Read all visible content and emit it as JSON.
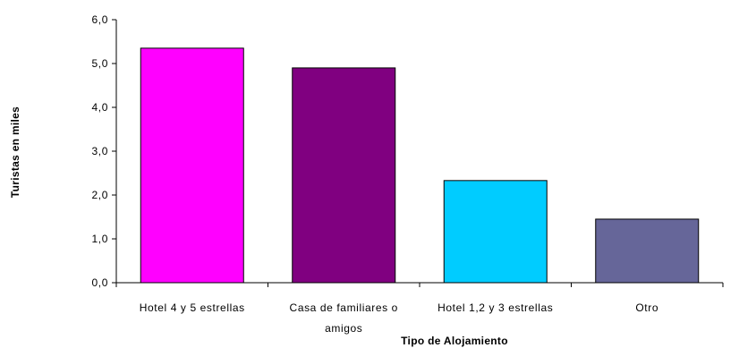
{
  "chart_data": {
    "type": "bar",
    "categories": [
      [
        "Hotel 4 y 5 estrellas"
      ],
      [
        "Casa de familiares o",
        "amigos"
      ],
      [
        "Hotel 1,2 y 3 estrellas"
      ],
      [
        "Otro"
      ]
    ],
    "values": [
      5.35,
      4.9,
      2.33,
      1.45
    ],
    "colors": [
      "#ff00ff",
      "#800080",
      "#00ccff",
      "#666699"
    ],
    "xlabel": "Tipo de Alojamiento",
    "ylabel": "Turistas en miles",
    "ylim": [
      0,
      6
    ],
    "yticks": [
      "0,0",
      "1,0",
      "2,0",
      "3,0",
      "4,0",
      "5,0",
      "6,0"
    ],
    "grid": false,
    "legend": "none"
  }
}
